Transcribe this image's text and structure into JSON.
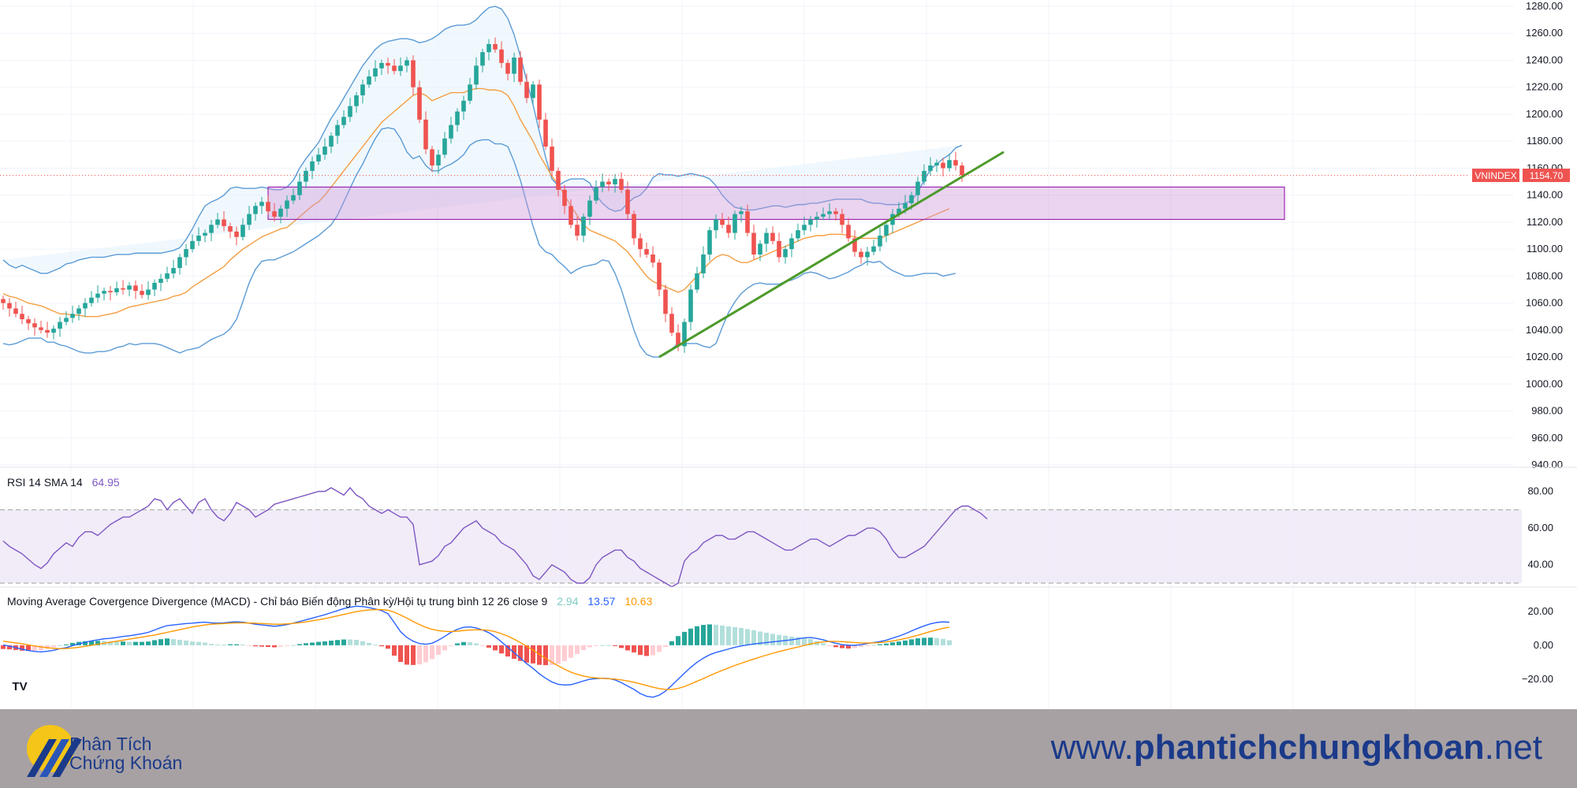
{
  "chart_data": [
    {
      "type": "candlestick",
      "symbol": "VNINDEX",
      "last_price": "1154.70",
      "ylim": [
        940,
        1280
      ],
      "y_ticks": [
        "1280.00",
        "1260.00",
        "1240.00",
        "1220.00",
        "1200.00",
        "1180.00",
        "1160.00",
        "1140.00",
        "1120.00",
        "1100.00",
        "1080.00",
        "1060.00",
        "1040.00",
        "1020.00",
        "1000.00",
        "980.00",
        "960.00",
        "940.00"
      ],
      "closes": [
        1060,
        1056,
        1052,
        1048,
        1045,
        1042,
        1040,
        1038,
        1041,
        1046,
        1049,
        1052,
        1056,
        1060,
        1064,
        1067,
        1069,
        1068,
        1071,
        1070,
        1073,
        1069,
        1066,
        1070,
        1075,
        1078,
        1082,
        1086,
        1094,
        1100,
        1106,
        1110,
        1112,
        1118,
        1122,
        1117,
        1113,
        1109,
        1118,
        1126,
        1132,
        1135,
        1128,
        1124,
        1130,
        1136,
        1140,
        1150,
        1158,
        1165,
        1170,
        1176,
        1184,
        1192,
        1198,
        1206,
        1214,
        1222,
        1228,
        1234,
        1238,
        1236,
        1232,
        1236,
        1240,
        1220,
        1196,
        1174,
        1162,
        1170,
        1182,
        1192,
        1202,
        1210,
        1222,
        1236,
        1246,
        1252,
        1248,
        1238,
        1230,
        1242,
        1224,
        1212,
        1222,
        1196,
        1176,
        1158,
        1144,
        1132,
        1118,
        1110,
        1124,
        1136,
        1146,
        1150,
        1148,
        1152,
        1144,
        1126,
        1108,
        1100,
        1096,
        1090,
        1070,
        1052,
        1038,
        1028,
        1046,
        1070,
        1082,
        1096,
        1114,
        1122,
        1118,
        1112,
        1126,
        1128,
        1112,
        1096,
        1104,
        1112,
        1106,
        1094,
        1100,
        1108,
        1114,
        1118,
        1122,
        1124,
        1126,
        1128,
        1126,
        1118,
        1108,
        1098,
        1094,
        1098,
        1102,
        1110,
        1118,
        1126,
        1130,
        1134,
        1140,
        1150,
        1158,
        1162,
        1164,
        1160,
        1166,
        1162,
        1154.7
      ],
      "bb_upper": [
        1092,
        1088,
        1086,
        1088,
        1086,
        1084,
        1082,
        1082,
        1084,
        1086,
        1089,
        1090,
        1092,
        1093,
        1094,
        1094,
        1094,
        1095,
        1096,
        1096,
        1096,
        1097,
        1097,
        1097,
        1097,
        1097,
        1098,
        1099,
        1101,
        1107,
        1115,
        1124,
        1132,
        1135,
        1137,
        1140,
        1145,
        1146,
        1145,
        1145,
        1145,
        1146,
        1145,
        1144,
        1144,
        1146,
        1151,
        1160,
        1167,
        1173,
        1179,
        1188,
        1197,
        1204,
        1212,
        1220,
        1228,
        1236,
        1242,
        1248,
        1252,
        1254,
        1255,
        1256,
        1256,
        1255,
        1253,
        1254,
        1256,
        1259,
        1263,
        1265,
        1266,
        1266,
        1267,
        1270,
        1275,
        1279,
        1280,
        1278,
        1271,
        1259,
        1243,
        1225,
        1207,
        1187,
        1168,
        1152,
        1147,
        1150,
        1152,
        1152,
        1152,
        1149,
        1140,
        1134,
        1130,
        1128,
        1129,
        1134,
        1138,
        1140,
        1145,
        1153,
        1156,
        1155,
        1155,
        1154,
        1155,
        1156,
        1155,
        1154,
        1152,
        1147,
        1140,
        1135,
        1131,
        1130,
        1129,
        1129,
        1130,
        1131,
        1132,
        1132,
        1131,
        1132,
        1133,
        1133,
        1134,
        1134,
        1135,
        1136,
        1137,
        1137,
        1137,
        1137,
        1137,
        1135,
        1134,
        1134,
        1133,
        1133,
        1133,
        1134,
        1136,
        1142,
        1151,
        1159,
        1163,
        1167,
        1170,
        1175,
        1177
      ],
      "bb_lower": [
        1030,
        1029,
        1030,
        1032,
        1034,
        1034,
        1034,
        1031,
        1031,
        1029,
        1028,
        1026,
        1024,
        1023,
        1023,
        1024,
        1024,
        1025,
        1027,
        1028,
        1030,
        1029,
        1030,
        1030,
        1030,
        1029,
        1027,
        1025,
        1023,
        1025,
        1026,
        1027,
        1030,
        1033,
        1035,
        1037,
        1041,
        1048,
        1061,
        1075,
        1085,
        1091,
        1092,
        1092,
        1094,
        1096,
        1098,
        1101,
        1104,
        1107,
        1110,
        1114,
        1118,
        1125,
        1135,
        1145,
        1155,
        1163,
        1173,
        1182,
        1189,
        1190,
        1189,
        1182,
        1172,
        1167,
        1169,
        1162,
        1158,
        1158,
        1161,
        1163,
        1166,
        1170,
        1177,
        1180,
        1181,
        1181,
        1178,
        1178,
        1176,
        1165,
        1151,
        1134,
        1117,
        1103,
        1098,
        1096,
        1091,
        1087,
        1082,
        1085,
        1087,
        1088,
        1089,
        1092,
        1091,
        1082,
        1070,
        1055,
        1040,
        1028,
        1022,
        1020,
        1020,
        1022,
        1026,
        1030,
        1030,
        1030,
        1030,
        1028,
        1027,
        1030,
        1042,
        1053,
        1061,
        1067,
        1071,
        1074,
        1075,
        1074,
        1074,
        1074,
        1076,
        1077,
        1079,
        1082,
        1083,
        1082,
        1080,
        1078,
        1079,
        1081,
        1083,
        1086,
        1088,
        1091,
        1090,
        1091,
        1087,
        1084,
        1082,
        1080,
        1080,
        1081,
        1082,
        1082,
        1082,
        1080,
        1081,
        1082
      ],
      "ma20": [
        1067,
        1065,
        1064,
        1062,
        1060,
        1059,
        1058,
        1056,
        1054,
        1052,
        1052,
        1051,
        1051,
        1050,
        1050,
        1050,
        1051,
        1052,
        1053,
        1055,
        1057,
        1058,
        1059,
        1060,
        1061,
        1062,
        1063,
        1065,
        1066,
        1068,
        1072,
        1075,
        1078,
        1081,
        1084,
        1087,
        1092,
        1096,
        1100,
        1103,
        1106,
        1109,
        1111,
        1113,
        1115,
        1116,
        1120,
        1124,
        1128,
        1132,
        1135,
        1140,
        1146,
        1152,
        1158,
        1164,
        1170,
        1176,
        1182,
        1188,
        1194,
        1198,
        1202,
        1206,
        1210,
        1214,
        1216,
        1214,
        1210,
        1212,
        1214,
        1216,
        1216,
        1216,
        1218,
        1219,
        1219,
        1218,
        1218,
        1217,
        1214,
        1206,
        1196,
        1188,
        1180,
        1170,
        1162,
        1154,
        1148,
        1140,
        1132,
        1125,
        1118,
        1114,
        1112,
        1110,
        1108,
        1106,
        1102,
        1098,
        1092,
        1086,
        1080,
        1076,
        1074,
        1072,
        1070,
        1068,
        1070,
        1075,
        1080,
        1085,
        1090,
        1094,
        1096,
        1095,
        1092,
        1090,
        1090,
        1092,
        1094,
        1096,
        1098,
        1100,
        1102,
        1104,
        1106,
        1108,
        1109,
        1110,
        1110,
        1111,
        1111,
        1111,
        1110,
        1109,
        1108,
        1108,
        1108,
        1108,
        1110,
        1112,
        1114,
        1116,
        1118,
        1120,
        1122,
        1124,
        1126,
        1128,
        1130
      ],
      "support_zone": [
        1122,
        1146
      ],
      "trendline": [
        [
          104,
          1020
        ],
        [
          1273,
          1172
        ]
      ]
    },
    {
      "type": "line",
      "legend": [
        "RSI 14 SMA 14",
        "64.95"
      ],
      "ylim": [
        30,
        85
      ],
      "y_ticks": [
        "80.00",
        "60.00",
        "40.00"
      ],
      "bands": [
        30,
        70
      ],
      "values": [
        53,
        50,
        48,
        46,
        43,
        40,
        38,
        41,
        46,
        49,
        52,
        50,
        55,
        58,
        58,
        56,
        59,
        62,
        64,
        66,
        66,
        68,
        70,
        72,
        76,
        75,
        70,
        74,
        76,
        72,
        68,
        74,
        76,
        70,
        66,
        64,
        68,
        74,
        72,
        70,
        66,
        68,
        70,
        73,
        74,
        75,
        76,
        77,
        78,
        79,
        80,
        80,
        82,
        80,
        78,
        82,
        78,
        76,
        72,
        70,
        68,
        70,
        68,
        66,
        66,
        62,
        40,
        41,
        42,
        45,
        50,
        52,
        56,
        60,
        62,
        64,
        60,
        58,
        56,
        52,
        50,
        48,
        44,
        40,
        34,
        32,
        36,
        40,
        38,
        36,
        32,
        30,
        30,
        33,
        40,
        44,
        46,
        48,
        48,
        44,
        42,
        38,
        36,
        34,
        32,
        30,
        28,
        30,
        42,
        46,
        48,
        52,
        54,
        56,
        56,
        54,
        54,
        56,
        58,
        58,
        56,
        54,
        52,
        50,
        48,
        48,
        50,
        52,
        54,
        54,
        52,
        50,
        52,
        54,
        56,
        56,
        58,
        60,
        60,
        58,
        54,
        48,
        44,
        44,
        46,
        48,
        50,
        54,
        58,
        62,
        66,
        70,
        72,
        72,
        70,
        68,
        64.95
      ]
    },
    {
      "type": "line",
      "legend": [
        "Moving Average Covergence Divergence (MACD) - Chỉ báo Biến động Phân kỳ/Hội tụ trung bình 12 26 close 9",
        "2.94",
        "13.57",
        "10.63"
      ],
      "ylim": [
        -33,
        25
      ],
      "y_ticks": [
        "20.00",
        "0.00",
        "−20.00"
      ],
      "series": [
        {
          "name": "MACD",
          "color": "#2962ff",
          "values": [
            0.2,
            -0.5,
            -1.4,
            -2.3,
            -3.1,
            -3.6,
            -3.9,
            -3.5,
            -3.0,
            -2.0,
            -1.4,
            -0.2,
            0.8,
            1.8,
            2.6,
            3.2,
            3.8,
            4.1,
            4.6,
            5.2,
            5.6,
            6.2,
            6.8,
            7.6,
            9.0,
            10.4,
            11.6,
            12.0,
            12.4,
            12.8,
            13.0,
            13.4,
            13.6,
            13.2,
            13.0,
            13.2,
            13.6,
            13.8,
            13.6,
            13.0,
            12.4,
            12.0,
            11.6,
            11.2,
            11.6,
            12.2,
            13.0,
            14.0,
            15.0,
            16.0,
            17.0,
            18.0,
            19.2,
            20.4,
            21.6,
            22.4,
            23.0,
            22.8,
            22.2,
            21.4,
            20.4,
            18.6,
            13.4,
            8.0,
            4.6,
            2.4,
            1.0,
            0.6,
            1.2,
            3.0,
            5.2,
            7.6,
            9.4,
            10.6,
            10.8,
            10.2,
            9.0,
            7.4,
            5.0,
            2.0,
            -1.2,
            -4.4,
            -7.6,
            -10.8,
            -13.6,
            -16.8,
            -19.4,
            -21.6,
            -23.0,
            -23.4,
            -23.2,
            -22.2,
            -21.0,
            -20.0,
            -19.6,
            -19.4,
            -19.6,
            -20.4,
            -22.0,
            -24.0,
            -26.0,
            -28.4,
            -30.0,
            -30.6,
            -29.4,
            -27.0,
            -23.6,
            -20.0,
            -16.4,
            -13.0,
            -10.0,
            -7.6,
            -5.6,
            -4.2,
            -3.2,
            -2.2,
            -1.2,
            -0.4,
            0.2,
            0.8,
            1.2,
            1.6,
            2.0,
            2.4,
            2.8,
            3.2,
            3.8,
            4.4,
            4.6,
            4.0,
            3.2,
            2.2,
            1.2,
            0.4,
            0.0,
            0.0,
            0.4,
            1.0,
            1.6,
            2.2,
            3.0,
            4.2,
            5.4,
            6.8,
            8.4,
            10.0,
            11.4,
            12.6,
            13.4,
            13.8,
            13.57
          ]
        },
        {
          "name": "Signal",
          "color": "#ff9800",
          "values": [
            2.4,
            1.9,
            1.4,
            0.9,
            0.2,
            -0.4,
            -1.0,
            -1.4,
            -1.8,
            -2.0,
            -1.9,
            -1.6,
            -1.2,
            -0.6,
            0.0,
            0.6,
            1.2,
            1.8,
            2.4,
            3.0,
            3.6,
            4.2,
            4.8,
            5.4,
            6.0,
            6.8,
            7.6,
            8.4,
            9.2,
            10.0,
            10.8,
            11.4,
            12.0,
            12.4,
            12.6,
            12.8,
            13.0,
            13.2,
            13.2,
            13.1,
            13.0,
            12.8,
            12.6,
            12.4,
            12.4,
            12.6,
            12.9,
            13.3,
            13.8,
            14.4,
            15.0,
            15.7,
            16.5,
            17.3,
            18.2,
            19.0,
            19.8,
            20.4,
            20.8,
            21.0,
            21.0,
            20.6,
            19.5,
            17.8,
            16.0,
            14.0,
            12.2,
            10.6,
            9.4,
            8.6,
            8.2,
            8.1,
            8.3,
            8.7,
            9.0,
            9.1,
            9.1,
            8.8,
            8.0,
            6.8,
            5.4,
            3.6,
            1.6,
            -0.6,
            -2.9,
            -5.3,
            -7.7,
            -10.0,
            -12.1,
            -14.1,
            -15.8,
            -17.1,
            -18.1,
            -18.8,
            -19.2,
            -19.5,
            -19.7,
            -19.9,
            -20.4,
            -21.0,
            -21.8,
            -22.7,
            -23.7,
            -24.7,
            -25.5,
            -26.0,
            -26.0,
            -25.4,
            -24.3,
            -22.8,
            -21.2,
            -19.6,
            -17.9,
            -16.3,
            -14.8,
            -13.3,
            -11.9,
            -10.6,
            -9.3,
            -8.1,
            -6.9,
            -5.8,
            -4.7,
            -3.7,
            -2.8,
            -1.9,
            -1.0,
            -0.1,
            0.8,
            1.5,
            2.0,
            2.3,
            2.3,
            2.1,
            1.9,
            1.6,
            1.4,
            1.3,
            1.4,
            1.6,
            2.0,
            2.5,
            3.2,
            4.0,
            4.9,
            5.9,
            7.0,
            8.1,
            9.1,
            10.0,
            10.63
          ]
        }
      ]
    }
  ],
  "footer": {
    "logo_line1": "Phân Tích",
    "logo_line2": "Chứng Khoán",
    "url_prefix": "www.",
    "url_domain": "phantichchungkhoan",
    "url_suffix": ".net"
  },
  "colors": {
    "up": "#26a69a",
    "down": "#ef5350",
    "bb": "#5b9bd5",
    "ma": "#f59e42",
    "trend": "#4c9a2a",
    "zone": "#9c27b0",
    "rsi": "#7e57c2",
    "footer_bg": "#a8a1a3",
    "brand": "#1b3a8a"
  }
}
